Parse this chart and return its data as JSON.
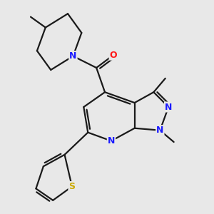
{
  "background_color": "#e8e8e8",
  "bond_color": "#1a1a1a",
  "bond_width": 1.6,
  "atom_colors": {
    "N": "#1a1aff",
    "O": "#ff1a1a",
    "S": "#ccaa00",
    "C": "#1a1a1a"
  },
  "figsize": [
    3.0,
    3.0
  ],
  "dpi": 100
}
